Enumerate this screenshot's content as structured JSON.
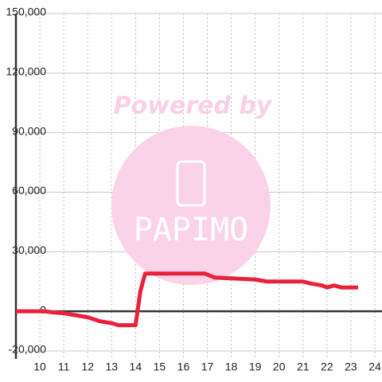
{
  "chart_data": {
    "type": "line",
    "watermark": "Powered by",
    "watermark_logo": "PAPIMO",
    "x": [
      9,
      10.2,
      10.5,
      11,
      11.5,
      12,
      12.5,
      13,
      13.3,
      14,
      14.2,
      14.4,
      16.9,
      17.3,
      19,
      19.5,
      21,
      21.3,
      21.8,
      22,
      22.3,
      22.6,
      23.3
    ],
    "series": [
      {
        "color": "#e8223a",
        "values": [
          0,
          0,
          -500,
          -1000,
          -2000,
          -3000,
          -5000,
          -6000,
          -7000,
          -7000,
          10000,
          19000,
          19000,
          17000,
          16000,
          15000,
          15000,
          14000,
          13000,
          12000,
          13000,
          12000,
          12000
        ]
      }
    ],
    "xlim": [
      9,
      24.3
    ],
    "ylim": [
      -24000,
      150000
    ],
    "xticks": [
      10,
      11,
      12,
      13,
      14,
      15,
      16,
      17,
      18,
      19,
      20,
      21,
      22,
      23,
      24
    ],
    "yticks": [
      {
        "value": -20000,
        "label": "-20,000"
      },
      0,
      {
        "value": 30000,
        "label": "30,000"
      },
      {
        "value": 60000,
        "label": "60,000"
      },
      {
        "value": 90000,
        "label": "90,000"
      },
      {
        "value": 120000,
        "label": "120,000"
      },
      {
        "value": 150000,
        "label": "150,000"
      }
    ],
    "grid": true
  }
}
